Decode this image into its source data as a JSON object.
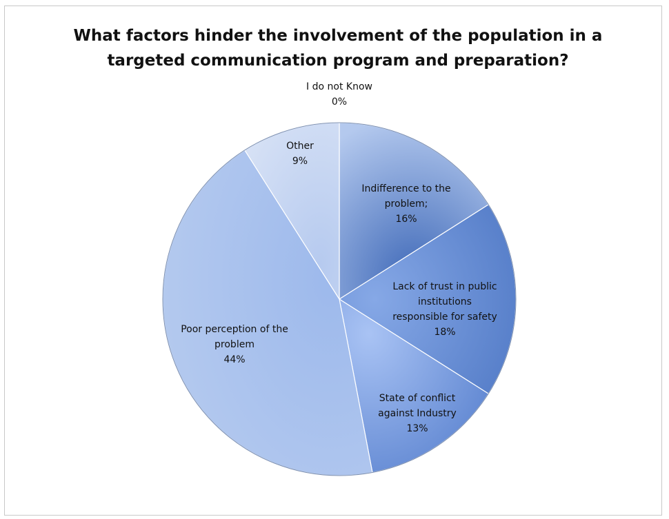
{
  "chart_data": {
    "type": "pie",
    "title": "What factors hinder the involvement of the population in a targeted communication program and preparation?",
    "slices": [
      {
        "label": "I do not Know",
        "value": 0,
        "display": "0%"
      },
      {
        "label": "Indifference to the problem;",
        "value": 16,
        "display": "16%"
      },
      {
        "label": "Lack of trust in public institutions responsible for safety",
        "value": 18,
        "display": "18%"
      },
      {
        "label": "State of conflict against Industry",
        "value": 13,
        "display": "13%"
      },
      {
        "label": "Poor perception of the problem",
        "value": 44,
        "display": "44%"
      },
      {
        "label": "Other",
        "value": 9,
        "display": "9%"
      }
    ],
    "colors": [
      "#b0c4e8",
      "#6f93cf",
      "#6d92d2",
      "#88aaea",
      "#a5c0ec",
      "#c4d3f0"
    ],
    "start_angle": "12 o'clock",
    "direction": "clockwise",
    "legend": "none (labels inside slices)"
  }
}
